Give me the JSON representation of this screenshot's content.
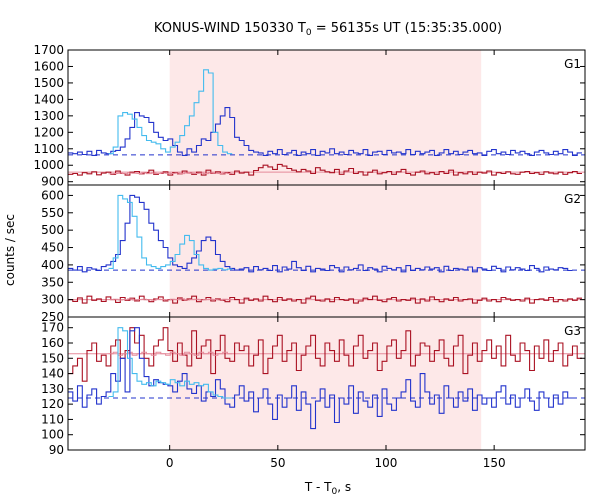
{
  "chart_data": {
    "type": "line",
    "title": "KONUS-WIND 150330 T",
    "title_sub": "0",
    "title_rest": " = 56135s UT (15:35:35.000)",
    "xlabel": "T - T",
    "xlabel_sub": "0",
    "xlabel_rest": ", s",
    "ylabel": "counts / sec",
    "xlim": [
      -47,
      192
    ],
    "xticks": [
      0,
      50,
      100,
      150
    ],
    "shade": {
      "x0": 0,
      "x1": 144,
      "color": "#fde8e8"
    },
    "colors": {
      "blue": "#2233cc",
      "light_blue": "#44bbee",
      "red": "#aa1122",
      "pink": "#e58a9a"
    },
    "panels": [
      {
        "label": "G1",
        "ylim": [
          880,
          1700
        ],
        "yticks": [
          900,
          1000,
          1100,
          1200,
          1300,
          1400,
          1500,
          1600,
          1700
        ],
        "blue_bg": 1063,
        "red_bg": 958,
        "blue_start": -47,
        "blue_step": 2.2,
        "blue": [
          1075,
          1070,
          1080,
          1065,
          1085,
          1060,
          1090,
          1075,
          1070,
          1085,
          1090,
          1110,
          1160,
          1230,
          1320,
          1300,
          1290,
          1260,
          1200,
          1170,
          1150,
          1160,
          1120,
          1080,
          1060,
          1100,
          1080,
          1120,
          1160,
          1150,
          1200,
          1250,
          1300,
          1350,
          1290,
          1170,
          1150,
          1120,
          1090,
          1080,
          1075,
          1060,
          1085,
          1070,
          1095,
          1065,
          1075,
          1090,
          1060,
          1080,
          1070,
          1095,
          1060,
          1085,
          1075,
          1100,
          1070,
          1080,
          1065,
          1090,
          1075,
          1070,
          1095,
          1060,
          1080,
          1085,
          1065,
          1090,
          1075,
          1080,
          1070,
          1095,
          1065,
          1085,
          1070,
          1080,
          1090,
          1060,
          1075,
          1095,
          1070,
          1085,
          1065,
          1080,
          1090,
          1070,
          1075,
          1060,
          1085,
          1095,
          1070,
          1080,
          1065,
          1090,
          1075,
          1085,
          1070,
          1060,
          1080,
          1090,
          1075,
          1065,
          1085,
          1070,
          1095,
          1080,
          1060,
          1075
        ],
        "lb_start": -28.3,
        "lb_step": 2.2,
        "light_blue": [
          1070,
          1110,
          1300,
          1320,
          1310,
          1280,
          1230,
          1180,
          1150,
          1140,
          1130,
          1100,
          1080,
          1110,
          1140,
          1180,
          1240,
          1300,
          1380,
          1450,
          1580,
          1560,
          1200,
          1120,
          1080,
          1070
        ],
        "red_start": -47,
        "red_step": 2.2,
        "red": [
          945,
          950,
          940,
          955,
          948,
          960,
          942,
          952,
          958,
          945,
          965,
          950,
          940,
          958,
          962,
          948,
          955,
          970,
          945,
          950,
          960,
          940,
          955,
          948,
          965,
          952,
          945,
          958,
          940,
          970,
          950,
          960,
          948,
          955,
          945,
          965,
          952,
          958,
          940,
          968,
          985,
          1000,
          990,
          975,
          1005,
          995,
          980,
          970,
          960,
          975,
          965,
          950,
          985,
          970,
          960,
          955,
          975,
          945,
          965,
          980,
          950,
          960,
          940,
          958,
          970,
          948,
          955,
          962,
          945,
          960,
          975,
          950,
          940,
          958,
          965,
          948,
          955,
          945,
          962,
          950,
          970,
          940,
          955,
          948,
          960,
          945,
          958,
          952,
          965,
          940,
          955,
          950,
          960,
          948,
          945,
          958,
          962,
          950,
          955,
          945,
          960,
          952,
          948,
          958,
          945,
          955,
          962,
          950
        ],
        "pink_start": -28.3,
        "pink_step": 2.2,
        "pink": [
          948,
          950,
          952,
          949,
          953,
          951,
          950,
          954,
          949,
          952,
          950,
          953,
          951,
          950,
          952,
          949,
          953,
          951,
          950,
          952,
          949,
          953,
          951,
          950,
          952,
          950
        ]
      },
      {
        "label": "G2",
        "ylim": [
          250,
          630
        ],
        "yticks": [
          250,
          300,
          350,
          400,
          450,
          500,
          550,
          600
        ],
        "blue_bg": 385,
        "red_bg": 300,
        "blue_start": -47,
        "blue_step": 2.2,
        "blue": [
          390,
          385,
          395,
          380,
          392,
          388,
          384,
          395,
          400,
          410,
          430,
          470,
          520,
          600,
          595,
          580,
          560,
          520,
          500,
          470,
          450,
          420,
          400,
          395,
          390,
          405,
          420,
          440,
          470,
          480,
          470,
          430,
          410,
          395,
          390,
          385,
          388,
          392,
          380,
          395,
          386,
          390,
          384,
          398,
          380,
          394,
          388,
          410,
          392,
          384,
          396,
          380,
          390,
          388,
          384,
          398,
          392,
          380,
          394,
          386,
          390,
          400,
          384,
          392,
          388,
          380,
          396,
          390,
          386,
          392,
          380,
          398,
          384,
          390,
          386,
          394,
          388,
          392,
          380,
          396,
          384,
          390,
          388,
          386,
          394,
          380,
          392,
          388,
          384,
          396,
          390,
          380,
          394,
          386,
          392,
          388,
          384,
          398,
          390,
          380,
          394,
          388,
          386,
          392,
          390,
          384
        ],
        "lb_start": -28.3,
        "lb_step": 2.2,
        "light_blue": [
          390,
          420,
          600,
          590,
          580,
          540,
          480,
          420,
          400,
          395,
          390,
          395,
          400,
          410,
          430,
          460,
          485,
          470,
          430,
          400,
          390,
          385,
          388,
          390,
          386,
          388
        ],
        "red_start": -47,
        "red_step": 2.2,
        "red": [
          300,
          295,
          305,
          290,
          310,
          298,
          302,
          295,
          308,
          300,
          292,
          306,
          298,
          304,
          296,
          310,
          300,
          294,
          302,
          308,
          296,
          300,
          290,
          305,
          298,
          302,
          310,
          294,
          300,
          306,
          296,
          302,
          298,
          294,
          306,
          300,
          290,
          304,
          298,
          302,
          296,
          310,
          300,
          294,
          306,
          298,
          302,
          296,
          300,
          290,
          304,
          310,
          298,
          296,
          302,
          294,
          306,
          300,
          298,
          302,
          290,
          296,
          304,
          300,
          310,
          298,
          294,
          302,
          306,
          296,
          300,
          298,
          304,
          290,
          302,
          296,
          308,
          300,
          294,
          302,
          298,
          306,
          296,
          300,
          302,
          290,
          298,
          304,
          296,
          300,
          294,
          306,
          302,
          298,
          300,
          296,
          304,
          290,
          300,
          302,
          298,
          306,
          294,
          300,
          296,
          302,
          298,
          304
        ],
        "pink_start": -28.3,
        "pink_step": 2.2,
        "pink": [
          300,
          301,
          299,
          300,
          302,
          299,
          300,
          301,
          300,
          298,
          301,
          300,
          299,
          301,
          300,
          302,
          299,
          300,
          301,
          299,
          300,
          301,
          300,
          299,
          301,
          300
        ]
      },
      {
        "label": "G3",
        "ylim": [
          90,
          177
        ],
        "yticks": [
          90,
          100,
          110,
          120,
          130,
          140,
          150,
          160,
          170
        ],
        "blue_bg": 124,
        "red_bg": 153,
        "blue_start": -47,
        "blue_step": 2.2,
        "blue": [
          128,
          122,
          132,
          118,
          126,
          130,
          120,
          125,
          128,
          140,
          135,
          150,
          128,
          168,
          170,
          150,
          138,
          132,
          136,
          134,
          133,
          132,
          128,
          135,
          140,
          130,
          127,
          132,
          122,
          128,
          125,
          136,
          130,
          120,
          118,
          126,
          132,
          122,
          128,
          115,
          124,
          130,
          120,
          110,
          126,
          118,
          124,
          132,
          116,
          128,
          120,
          104,
          122,
          130,
          118,
          126,
          108,
          124,
          120,
          132,
          114,
          128,
          122,
          118,
          126,
          112,
          130,
          120,
          116,
          124,
          128,
          136,
          122,
          118,
          140,
          128,
          120,
          126,
          114,
          132,
          124,
          118,
          128,
          122,
          130,
          116,
          126,
          120,
          124,
          118,
          128,
          132,
          120,
          126,
          118,
          124,
          130,
          122,
          116,
          128,
          124,
          118,
          126,
          120,
          128,
          124
        ],
        "lb_start": -28.3,
        "lb_step": 2.2,
        "light_blue": [
          125,
          128,
          170,
          168,
          150,
          140,
          135,
          133,
          134,
          132,
          135,
          134,
          133,
          136,
          134,
          132,
          135,
          133,
          134,
          132,
          133,
          128,
          126,
          125,
          124,
          124
        ],
        "red_start": -47,
        "red_step": 2.2,
        "red": [
          140,
          145,
          150,
          135,
          155,
          160,
          148,
          152,
          145,
          158,
          162,
          150,
          155,
          170,
          160,
          165,
          150,
          145,
          158,
          162,
          170,
          155,
          148,
          160,
          152,
          145,
          168,
          150,
          158,
          162,
          140,
          155,
          165,
          150,
          148,
          160,
          155,
          158,
          145,
          152,
          162,
          140,
          150,
          158,
          165,
          148,
          155,
          160,
          142,
          152,
          158,
          165,
          150,
          145,
          160,
          155,
          148,
          162,
          152,
          145,
          158,
          165,
          150,
          155,
          160,
          142,
          148,
          158,
          162,
          150,
          155,
          168,
          145,
          152,
          160,
          158,
          148,
          155,
          162,
          150,
          145,
          158,
          165,
          140,
          152,
          160,
          148,
          155,
          162,
          150,
          158,
          145,
          165,
          152,
          148,
          160,
          155,
          142,
          158,
          150,
          162,
          148,
          155,
          160,
          145,
          152,
          158,
          150
        ],
        "pink_start": -28.3,
        "pink_step": 2.2,
        "pink": [
          153,
          154,
          152,
          153,
          154,
          152,
          153,
          154,
          153,
          152,
          154,
          153,
          152,
          154,
          153,
          152,
          154,
          153,
          152,
          154,
          153,
          154,
          152,
          153,
          154,
          153
        ]
      }
    ]
  }
}
